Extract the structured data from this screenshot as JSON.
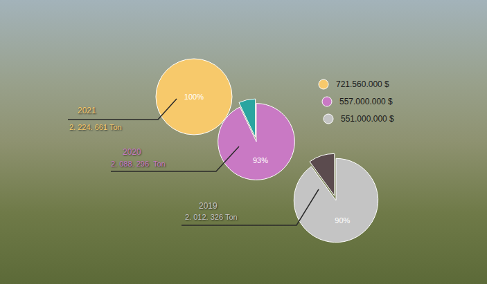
{
  "chart_data": [
    {
      "type": "pie",
      "title": "2021",
      "subtitle": "2. 224. 661 Ton",
      "values": [
        100
      ],
      "value_labels": [
        "100%"
      ],
      "colors": [
        "#f7c96b"
      ],
      "legend_label": "721.560.000 $"
    },
    {
      "type": "pie",
      "title": "2020",
      "subtitle": "2. 088. 296  Ton",
      "values": [
        93,
        7
      ],
      "value_labels": [
        "93%",
        null
      ],
      "colors": [
        "#c979c4",
        "#2aa5a0"
      ],
      "legend_label": "557.000.000 $"
    },
    {
      "type": "pie",
      "title": "2019",
      "subtitle": "2. 012. 326 Ton",
      "values": [
        90,
        10
      ],
      "value_labels": [
        "90%",
        null
      ],
      "colors": [
        "#c4c4c4",
        "#5b4b4e"
      ],
      "legend_label": "551.000.000 $"
    }
  ]
}
